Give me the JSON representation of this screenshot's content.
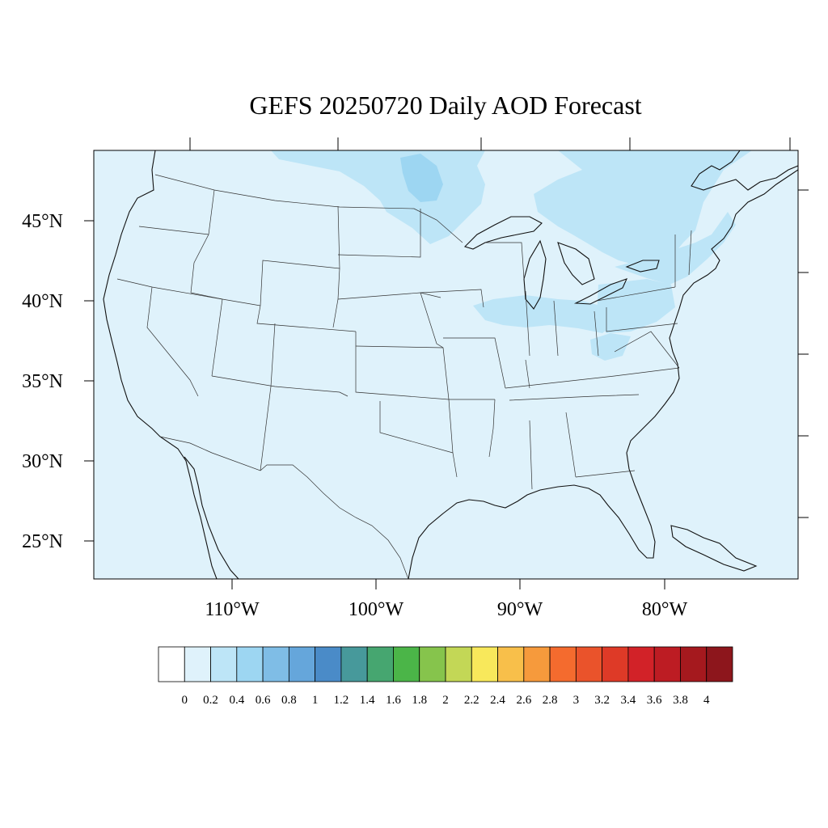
{
  "map": {
    "title": "GEFS 20250720 Daily AOD Forecast",
    "projection": "lambert-conformal",
    "region": "Contiguous United States",
    "lat_range": [
      22.5,
      49.5
    ],
    "lon_range": [
      -118.5,
      -71.5
    ],
    "background_color": "#dff2fb",
    "lat_labels": [
      "45°N",
      "40°N",
      "35°N",
      "30°N",
      "25°N"
    ],
    "lon_labels": [
      "110°W",
      "100°W",
      "90°W",
      "80°W"
    ]
  },
  "aod_field": {
    "base_level": "0.2",
    "plumes": [
      {
        "region": "Northern Minnesota / Lake Superior",
        "level": "0.4",
        "color": "#bde5f7"
      },
      {
        "region": "Upper Red Lake, Minnesota",
        "level": "0.6",
        "color": "#9dd6f2"
      },
      {
        "region": "Southern Ontario to New England",
        "level": "0.4",
        "color": "#bde5f7"
      },
      {
        "region": "Northern Illinois / Indiana / Ohio",
        "level": "0.4",
        "color": "#bde5f7"
      },
      {
        "region": "Pennsylvania / New York",
        "level": "0.4",
        "color": "#bde5f7"
      }
    ]
  },
  "colorbar": {
    "labels": [
      "0",
      "0.2",
      "0.4",
      "0.6",
      "0.8",
      "1",
      "1.2",
      "1.4",
      "1.6",
      "1.8",
      "2",
      "2.2",
      "2.4",
      "2.6",
      "2.8",
      "3",
      "3.2",
      "3.4",
      "3.6",
      "3.8",
      "4"
    ],
    "colors": [
      "#ffffff",
      "#dff2fb",
      "#bde5f7",
      "#9dd6f2",
      "#7fbde6",
      "#65a6db",
      "#4a8bc8",
      "#47999b",
      "#46a670",
      "#4bb548",
      "#86c44c",
      "#c3d756",
      "#f8e85b",
      "#f8bf4a",
      "#f69a3c",
      "#f46b2e",
      "#ea532b",
      "#de3a27",
      "#d22228",
      "#bd1c23",
      "#a5191e",
      "#8d161c"
    ]
  }
}
